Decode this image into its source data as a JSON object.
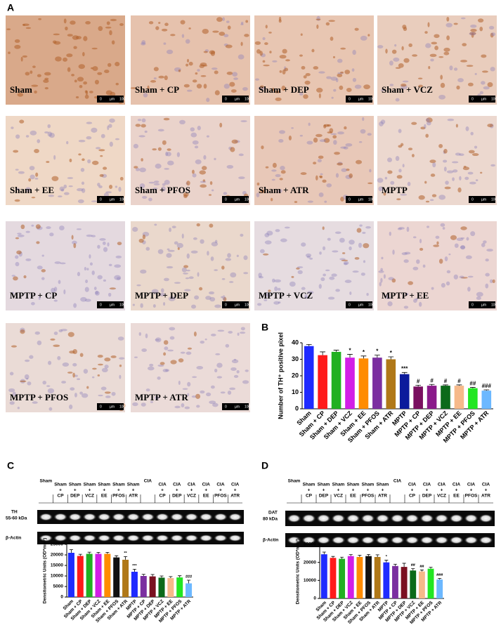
{
  "panel_labels": [
    "A",
    "B",
    "C",
    "D"
  ],
  "micrographs": {
    "scale_bar": [
      "0",
      "µm",
      "100"
    ],
    "labels": [
      "Sham",
      "Sham + CP",
      "Sham + DEP",
      "Sham + VCZ",
      "Sham + EE",
      "Sham + PFOS",
      "Sham + ATR",
      "MPTP",
      "MPTP + CP",
      "MPTP  + DEP",
      "MPTP + VCZ",
      "MPTP + EE",
      "MPTP + PFOS",
      "MPTP  + ATR"
    ]
  },
  "blots": [
    {
      "lanes": [
        [
          "Sham"
        ],
        [
          "Sham",
          "+",
          "CP"
        ],
        [
          "Sham",
          "+",
          "DEP"
        ],
        [
          "Sham",
          "+",
          "VCZ"
        ],
        [
          "Sham",
          "+",
          "EE"
        ],
        [
          "Sham",
          "+",
          "PFOS"
        ],
        [
          "Sham",
          "+",
          "ATR"
        ],
        [
          "CIA"
        ],
        [
          "CIA",
          "+",
          "CP"
        ],
        [
          "CIA",
          "+",
          "DEP"
        ],
        [
          "CIA",
          "+",
          "VCZ"
        ],
        [
          "CIA",
          "+",
          "EE"
        ],
        [
          "CIA",
          "+",
          "PFOS"
        ],
        [
          "CIA",
          "+",
          "ATR"
        ]
      ],
      "bands": [
        [
          "TH",
          "55-60 kDa"
        ],
        [
          "β-Actin"
        ]
      ]
    },
    {
      "lanes": [
        [
          "Sham"
        ],
        [
          "Sham",
          "+",
          "CP"
        ],
        [
          "Sham",
          "+",
          "DEP"
        ],
        [
          "Sham",
          "+",
          "VCZ"
        ],
        [
          "Sham",
          "+",
          "EE"
        ],
        [
          "Sham",
          "+",
          "PFOS"
        ],
        [
          "Sham",
          "+",
          "ATR"
        ],
        [
          "CIA"
        ],
        [
          "CIA",
          "+",
          "CP"
        ],
        [
          "CIA",
          "+",
          "DEP"
        ],
        [
          "CIA",
          "+",
          "VCZ"
        ],
        [
          "CIA",
          "+",
          "EE"
        ],
        [
          "CIA",
          "+",
          "PFOS"
        ],
        [
          "CIA",
          "+",
          "ATR"
        ]
      ],
      "bands": [
        [
          "DAT",
          "80 kDa"
        ],
        [
          "β-Actin"
        ]
      ]
    }
  ],
  "chart_data": [
    {
      "type": "bar",
      "ylabel": "Number of TH⁺ positive pixel",
      "categories": [
        "Sham",
        "Sham + CP",
        "Sham + DEP",
        "Sham + VCZ",
        "Sham + EE",
        "Sham + PFOS",
        "Sham + ATR",
        "MPTP",
        "MPTP + CP",
        "MPTP + DEP",
        "MPTP + VCZ",
        "MPTP + EE",
        "MPTP + PFOS",
        "MPTP + ATR"
      ],
      "values": [
        38,
        32.5,
        34.5,
        31,
        30.5,
        31,
        30,
        21,
        13.5,
        14,
        14,
        14,
        12.5,
        11
      ],
      "errors": [
        1,
        2,
        1,
        2,
        1.5,
        1.5,
        1.5,
        1,
        0.8,
        0.8,
        0.5,
        0.5,
        0.5,
        0.5
      ],
      "significance": [
        null,
        null,
        null,
        "*",
        "*",
        "*",
        "*",
        "***",
        "#",
        "#",
        "#",
        "#",
        "##",
        "###"
      ],
      "colors": [
        "#1f2bff",
        "#ff1a1a",
        "#22b022",
        "#d21ee6",
        "#ff8c00",
        "#7b2fa0",
        "#b07818",
        "#0b1a9c",
        "#7a1060",
        "#8a1a8a",
        "#0c6a1a",
        "#f6b98a",
        "#22e622",
        "#6cb8ff"
      ],
      "ylim": [
        0,
        40
      ],
      "yticks": [
        0,
        10,
        20,
        30,
        40
      ]
    },
    {
      "type": "bar",
      "ylabel": "Densitometric Units (OD*mm²)",
      "categories": [
        "Sham",
        "Sham + CP",
        "Sham + DEP",
        "Sham + VCZ",
        "Sham + EE",
        "Sham + PFOS",
        "Sham + ATR",
        "MPTP",
        "MPTP + CP",
        "MPTP + DEP",
        "MPTP + VCZ",
        "MPTP + EE",
        "MPTP + PFOS",
        "MPTP + ATR"
      ],
      "values": [
        21000,
        19500,
        20500,
        20500,
        20500,
        18800,
        17700,
        12000,
        10000,
        9800,
        9200,
        9000,
        9300,
        6500
      ],
      "errors": [
        1500,
        800,
        800,
        700,
        700,
        800,
        1500,
        1200,
        800,
        900,
        800,
        700,
        800,
        1500
      ],
      "significance": [
        null,
        null,
        null,
        null,
        null,
        null,
        "**",
        "***",
        null,
        null,
        null,
        null,
        null,
        "###"
      ],
      "colors": [
        "#1f2bff",
        "#ff1a1a",
        "#22b022",
        "#d21ee6",
        "#ff8c00",
        "#111111",
        "#b07818",
        "#1f2bff",
        "#7b2fa0",
        "#7a1020",
        "#0c6a1a",
        "#f6b98a",
        "#22e622",
        "#6cb8ff"
      ],
      "ylim": [
        0,
        25000
      ],
      "yticks": [
        0,
        5000,
        10000,
        15000,
        20000,
        25000
      ]
    },
    {
      "type": "bar",
      "ylabel": "Densitometric Units (OD*mm²)",
      "categories": [
        "Sham",
        "Sham + CP",
        "Sham + DEP",
        "Sham + VCZ",
        "Sham + EE",
        "Sham + PFOS",
        "Sham + ATR",
        "MPTP",
        "MPTP + CP",
        "MPTP + DEP",
        "MPTP + VCZ",
        "MPTP + EE",
        "MPTP + PFOS",
        "MPTP + ATR"
      ],
      "values": [
        24500,
        22500,
        22000,
        23500,
        23000,
        23500,
        23000,
        20000,
        18000,
        17500,
        15500,
        15000,
        16500,
        10500
      ],
      "errors": [
        1200,
        800,
        900,
        800,
        1000,
        900,
        1200,
        1200,
        1000,
        2000,
        1000,
        800,
        800,
        600
      ],
      "significance": [
        null,
        null,
        null,
        null,
        null,
        null,
        null,
        "*",
        null,
        null,
        "##",
        "##",
        null,
        "###"
      ],
      "colors": [
        "#1f2bff",
        "#ff1a1a",
        "#22b022",
        "#d21ee6",
        "#ff8c00",
        "#111111",
        "#b07818",
        "#1f2bff",
        "#7b2fa0",
        "#7a1020",
        "#0c6a1a",
        "#f6b98a",
        "#22e622",
        "#6cb8ff"
      ],
      "ylim": [
        0,
        30000
      ],
      "yticks": [
        0,
        10000,
        20000,
        30000
      ]
    }
  ]
}
